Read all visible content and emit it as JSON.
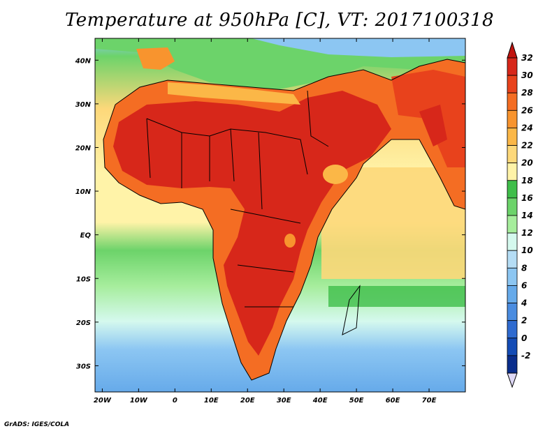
{
  "title": "Temperature at 950hPa [C], VT: 2017100318",
  "credit": "GrADS: IGES/COLA",
  "map": {
    "lat_labels": [
      "40N",
      "30N",
      "20N",
      "10N",
      "EQ",
      "10S",
      "20S",
      "30S"
    ],
    "lon_labels": [
      "20W",
      "10W",
      "0",
      "10E",
      "20E",
      "30E",
      "40E",
      "50E",
      "60E",
      "70E"
    ],
    "lon_range": [
      -22,
      80
    ],
    "lat_range": [
      -36,
      45
    ]
  },
  "colorbar": {
    "labels": [
      "32",
      "30",
      "28",
      "26",
      "24",
      "22",
      "20",
      "18",
      "16",
      "14",
      "12",
      "10",
      "8",
      "6",
      "4",
      "2",
      "0",
      "-2"
    ],
    "colors": [
      "#d7271a",
      "#e8421c",
      "#f46d23",
      "#f8942e",
      "#fbb747",
      "#fdd87a",
      "#fff3a8",
      "#3fbe4a",
      "#6cd36a",
      "#a6ed9c",
      "#d5f9ee",
      "#b5ddf5",
      "#8cc6f2",
      "#66aaea",
      "#4a8ce0",
      "#2f6bd0",
      "#144cb6",
      "#0a2d8c"
    ],
    "arrow_top": "#c0140f",
    "arrow_bottom": "#ded8f5"
  }
}
